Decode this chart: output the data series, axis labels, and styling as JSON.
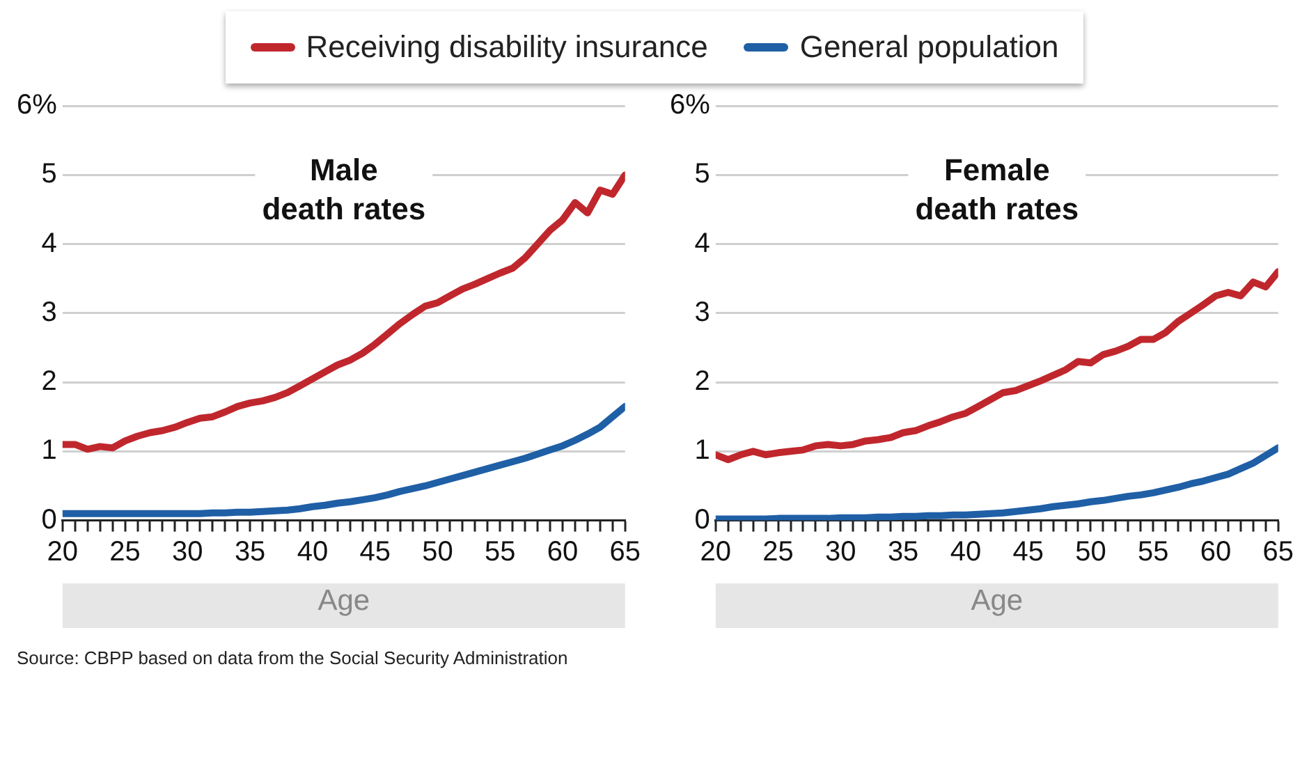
{
  "chart_data": [
    {
      "type": "line",
      "title": "Male death rates",
      "xlabel": "Age",
      "legend": "top",
      "grid": "y",
      "marker": "none",
      "line_style": "solid",
      "x": [
        20,
        21,
        22,
        23,
        24,
        25,
        26,
        27,
        28,
        29,
        30,
        31,
        32,
        33,
        34,
        35,
        36,
        37,
        38,
        39,
        40,
        41,
        42,
        43,
        44,
        45,
        46,
        47,
        48,
        49,
        50,
        51,
        52,
        53,
        54,
        55,
        56,
        57,
        58,
        59,
        60,
        61,
        62,
        63,
        64,
        65
      ],
      "series": [
        {
          "name": "Receiving disability insurance",
          "color": "#c0272d",
          "values": [
            1.1,
            1.1,
            1.03,
            1.07,
            1.05,
            1.15,
            1.22,
            1.27,
            1.3,
            1.35,
            1.42,
            1.48,
            1.5,
            1.57,
            1.65,
            1.7,
            1.73,
            1.78,
            1.85,
            1.95,
            2.05,
            2.15,
            2.25,
            2.32,
            2.42,
            2.55,
            2.7,
            2.85,
            2.98,
            3.1,
            3.15,
            3.25,
            3.35,
            3.42,
            3.5,
            3.58,
            3.65,
            3.8,
            4.0,
            4.2,
            4.35,
            4.6,
            4.45,
            4.78,
            4.72,
            5.0
          ]
        },
        {
          "name": "General population",
          "color": "#1f5fa6",
          "values": [
            0.1,
            0.1,
            0.1,
            0.1,
            0.1,
            0.1,
            0.1,
            0.1,
            0.1,
            0.1,
            0.1,
            0.1,
            0.11,
            0.11,
            0.12,
            0.12,
            0.13,
            0.14,
            0.15,
            0.17,
            0.2,
            0.22,
            0.25,
            0.27,
            0.3,
            0.33,
            0.37,
            0.42,
            0.46,
            0.5,
            0.55,
            0.6,
            0.65,
            0.7,
            0.75,
            0.8,
            0.85,
            0.9,
            0.96,
            1.02,
            1.08,
            1.16,
            1.25,
            1.35,
            1.5,
            1.65
          ]
        }
      ],
      "xlim": [
        20,
        65
      ],
      "xticks": [
        20,
        {
          "value": 21,
          "label": null
        },
        {
          "value": 22,
          "label": null
        },
        {
          "value": 23,
          "label": null
        },
        {
          "value": 24,
          "label": null
        },
        25,
        {
          "value": 26,
          "label": null
        },
        {
          "value": 27,
          "label": null
        },
        {
          "value": 28,
          "label": null
        },
        {
          "value": 29,
          "label": null
        },
        30,
        {
          "value": 31,
          "label": null
        },
        {
          "value": 32,
          "label": null
        },
        {
          "value": 33,
          "label": null
        },
        {
          "value": 34,
          "label": null
        },
        35,
        {
          "value": 36,
          "label": null
        },
        {
          "value": 37,
          "label": null
        },
        {
          "value": 38,
          "label": null
        },
        {
          "value": 39,
          "label": null
        },
        40,
        {
          "value": 41,
          "label": null
        },
        {
          "value": 42,
          "label": null
        },
        {
          "value": 43,
          "label": null
        },
        {
          "value": 44,
          "label": null
        },
        45,
        {
          "value": 46,
          "label": null
        },
        {
          "value": 47,
          "label": null
        },
        {
          "value": 48,
          "label": null
        },
        {
          "value": 49,
          "label": null
        },
        50,
        {
          "value": 51,
          "label": null
        },
        {
          "value": 52,
          "label": null
        },
        {
          "value": 53,
          "label": null
        },
        {
          "value": 54,
          "label": null
        },
        55,
        {
          "value": 56,
          "label": null
        },
        {
          "value": 57,
          "label": null
        },
        {
          "value": 58,
          "label": null
        },
        {
          "value": 59,
          "label": null
        },
        60,
        {
          "value": 61,
          "label": null
        },
        {
          "value": 62,
          "label": null
        },
        {
          "value": 63,
          "label": null
        },
        {
          "value": 64,
          "label": null
        },
        65
      ],
      "ylim": [
        0,
        6
      ],
      "yticks": [
        0,
        1,
        2,
        3,
        4,
        5,
        {
          "value": 6,
          "label": "6%"
        }
      ],
      "annotations": [
        "Source: CBPP based on data from the Social Security Administration"
      ]
    },
    {
      "type": "line",
      "title": "Female death rates",
      "xlabel": "Age",
      "grid": "y",
      "marker": "none",
      "line_style": "solid",
      "x": [
        20,
        21,
        22,
        23,
        24,
        25,
        26,
        27,
        28,
        29,
        30,
        31,
        32,
        33,
        34,
        35,
        36,
        37,
        38,
        39,
        40,
        41,
        42,
        43,
        44,
        45,
        46,
        47,
        48,
        49,
        50,
        51,
        52,
        53,
        54,
        55,
        56,
        57,
        58,
        59,
        60,
        61,
        62,
        63,
        64,
        65
      ],
      "series": [
        {
          "color": "#c0272d",
          "values": [
            0.95,
            0.88,
            0.95,
            1.0,
            0.95,
            0.98,
            1.0,
            1.02,
            1.08,
            1.1,
            1.08,
            1.1,
            1.15,
            1.17,
            1.2,
            1.27,
            1.3,
            1.37,
            1.43,
            1.5,
            1.55,
            1.65,
            1.75,
            1.85,
            1.88,
            1.95,
            2.02,
            2.1,
            2.18,
            2.3,
            2.28,
            2.4,
            2.45,
            2.52,
            2.62,
            2.62,
            2.72,
            2.88,
            3.0,
            3.12,
            3.25,
            3.3,
            3.25,
            3.45,
            3.38,
            3.6
          ]
        },
        {
          "color": "#1f5fa6",
          "values": [
            0.02,
            0.02,
            0.02,
            0.02,
            0.02,
            0.03,
            0.03,
            0.03,
            0.03,
            0.03,
            0.04,
            0.04,
            0.04,
            0.05,
            0.05,
            0.06,
            0.06,
            0.07,
            0.07,
            0.08,
            0.08,
            0.09,
            0.1,
            0.11,
            0.13,
            0.15,
            0.17,
            0.2,
            0.22,
            0.24,
            0.27,
            0.29,
            0.32,
            0.35,
            0.37,
            0.4,
            0.44,
            0.48,
            0.53,
            0.57,
            0.62,
            0.67,
            0.75,
            0.83,
            0.94,
            1.05
          ]
        }
      ],
      "xlim": [
        20,
        65
      ],
      "xticks": [
        20,
        {
          "value": 21,
          "label": null
        },
        {
          "value": 22,
          "label": null
        },
        {
          "value": 23,
          "label": null
        },
        {
          "value": 24,
          "label": null
        },
        25,
        {
          "value": 26,
          "label": null
        },
        {
          "value": 27,
          "label": null
        },
        {
          "value": 28,
          "label": null
        },
        {
          "value": 29,
          "label": null
        },
        30,
        {
          "value": 31,
          "label": null
        },
        {
          "value": 32,
          "label": null
        },
        {
          "value": 33,
          "label": null
        },
        {
          "value": 34,
          "label": null
        },
        35,
        {
          "value": 36,
          "label": null
        },
        {
          "value": 37,
          "label": null
        },
        {
          "value": 38,
          "label": null
        },
        {
          "value": 39,
          "label": null
        },
        40,
        {
          "value": 41,
          "label": null
        },
        {
          "value": 42,
          "label": null
        },
        {
          "value": 43,
          "label": null
        },
        {
          "value": 44,
          "label": null
        },
        45,
        {
          "value": 46,
          "label": null
        },
        {
          "value": 47,
          "label": null
        },
        {
          "value": 48,
          "label": null
        },
        {
          "value": 49,
          "label": null
        },
        50,
        {
          "value": 51,
          "label": null
        },
        {
          "value": 52,
          "label": null
        },
        {
          "value": 53,
          "label": null
        },
        {
          "value": 54,
          "label": null
        },
        55,
        {
          "value": 56,
          "label": null
        },
        {
          "value": 57,
          "label": null
        },
        {
          "value": 58,
          "label": null
        },
        {
          "value": 59,
          "label": null
        },
        60,
        {
          "value": 61,
          "label": null
        },
        {
          "value": 62,
          "label": null
        },
        {
          "value": 63,
          "label": null
        },
        {
          "value": 64,
          "label": null
        },
        65
      ],
      "ylim": [
        0,
        6
      ],
      "yticks": [
        0,
        1,
        2,
        3,
        4,
        5,
        {
          "value": 6,
          "label": "6%"
        }
      ]
    }
  ]
}
